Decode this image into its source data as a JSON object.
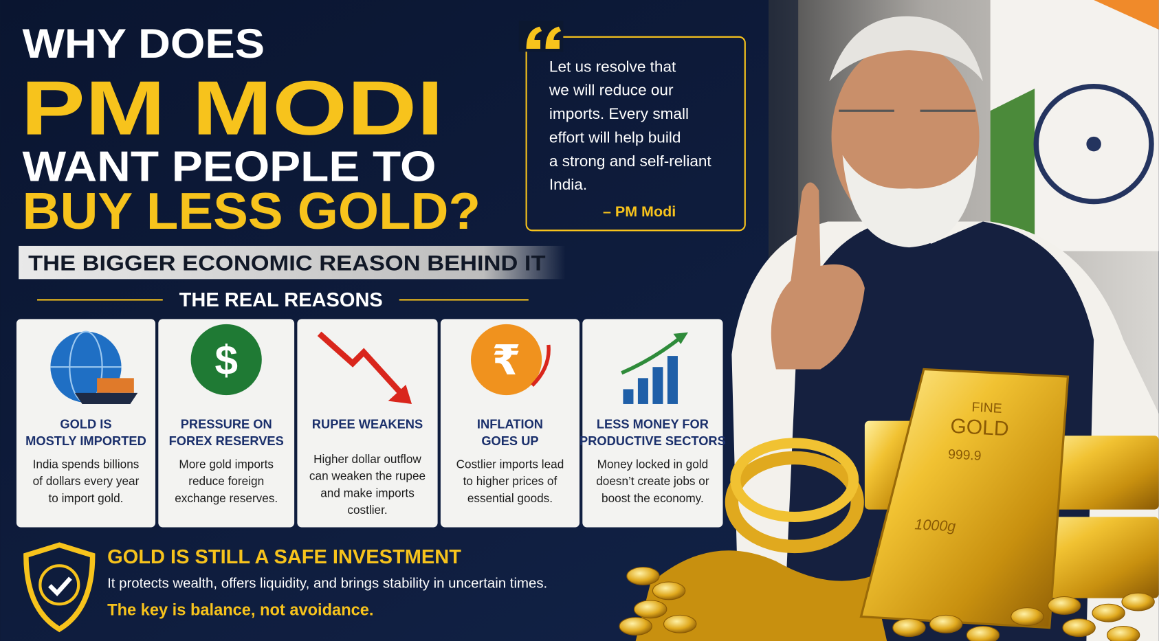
{
  "header": {
    "line1": "WHY DOES",
    "line2": "PM MODI",
    "line3": "WANT PEOPLE TO",
    "line4": "BUY LESS GOLD?",
    "subtitle": "THE BIGGER ECONOMIC REASON BEHIND IT"
  },
  "quote": {
    "lines": [
      "Let us resolve that",
      "we will reduce our",
      "imports. Every small",
      "effort will help build",
      "a strong and self-reliant",
      "India."
    ],
    "attribution": "– PM Modi"
  },
  "reasons": {
    "heading": "THE REAL REASONS",
    "cards": [
      {
        "icon": "globe",
        "title": [
          "GOLD IS",
          "MOSTLY IMPORTED"
        ],
        "body": [
          "India spends billions",
          "of dollars every year",
          "to import gold."
        ]
      },
      {
        "icon": "$",
        "title": [
          "PRESSURE ON",
          "FOREX RESERVES"
        ],
        "body": [
          "More gold imports",
          "reduce foreign",
          "exchange reserves."
        ]
      },
      {
        "icon": "down-arrow",
        "title": [
          "RUPEE WEAKENS"
        ],
        "body": [
          "Higher dollar outflow",
          "can weaken the rupee",
          "and make imports",
          "costlier."
        ]
      },
      {
        "icon": "₹",
        "title": [
          "INFLATION",
          "GOES UP"
        ],
        "body": [
          "Costlier imports lead",
          "to higher prices of",
          "essential goods."
        ]
      },
      {
        "icon": "bars",
        "title": [
          "LESS MONEY FOR",
          "PRODUCTIVE SECTORS"
        ],
        "body": [
          "Money locked in gold",
          "doesn’t create jobs or",
          "boost the economy."
        ]
      }
    ]
  },
  "footer": {
    "title": "GOLD IS STILL A SAFE INVESTMENT",
    "text": "It protects wealth, offers liquidity, and brings stability in uncertain times.",
    "tagline": "The key is balance, not avoidance."
  },
  "gold_bar": {
    "line1": "FINE",
    "line2": "GOLD",
    "purity": "999.9",
    "weight": "1000g"
  }
}
